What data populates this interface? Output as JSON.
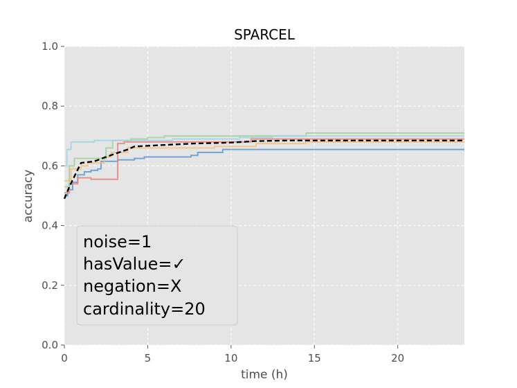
{
  "chart_data": {
    "type": "line",
    "title": "SPARCEL",
    "xlabel": "time (h)",
    "ylabel": "accuracy",
    "xlim": [
      0,
      24
    ],
    "ylim": [
      0.0,
      1.0
    ],
    "x_ticks": [
      0,
      5,
      10,
      15,
      20
    ],
    "x_tick_labels": [
      "0",
      "5",
      "10",
      "15",
      "20"
    ],
    "y_ticks": [
      0.0,
      0.2,
      0.4,
      0.6,
      0.8,
      1.0
    ],
    "y_tick_labels": [
      "0.0",
      "0.2",
      "0.4",
      "0.6",
      "0.8",
      "1.0"
    ],
    "grid": true,
    "annotation": {
      "lines": [
        "noise=1",
        "hasValue=✓",
        "negation=X",
        "cardinality=20"
      ],
      "placement": "lower-left"
    },
    "series": [
      {
        "style": "step",
        "color": "#5b9bd5",
        "points": [
          [
            0,
            0.5
          ],
          [
            0.2,
            0.52
          ],
          [
            0.5,
            0.545
          ],
          [
            0.8,
            0.57
          ],
          [
            1.2,
            0.58
          ],
          [
            1.6,
            0.585
          ],
          [
            2.0,
            0.59
          ],
          [
            2.2,
            0.615
          ],
          [
            3.2,
            0.62
          ],
          [
            4.2,
            0.625
          ],
          [
            4.8,
            0.63
          ],
          [
            7.6,
            0.635
          ],
          [
            8.0,
            0.645
          ],
          [
            9.5,
            0.655
          ],
          [
            24,
            0.655
          ]
        ]
      },
      {
        "style": "step",
        "color": "#e8847a",
        "points": [
          [
            0,
            0.51
          ],
          [
            0.3,
            0.54
          ],
          [
            0.8,
            0.56
          ],
          [
            1.6,
            0.555
          ],
          [
            3.2,
            0.675
          ],
          [
            3.6,
            0.68
          ],
          [
            9.0,
            0.68
          ],
          [
            11.2,
            0.69
          ],
          [
            24,
            0.69
          ]
        ]
      },
      {
        "style": "step",
        "color": "#f0c27b",
        "points": [
          [
            0,
            0.55
          ],
          [
            0.4,
            0.59
          ],
          [
            1.0,
            0.6
          ],
          [
            1.4,
            0.61
          ],
          [
            2.4,
            0.63
          ],
          [
            2.8,
            0.645
          ],
          [
            3.8,
            0.66
          ],
          [
            9.0,
            0.665
          ],
          [
            11.5,
            0.675
          ],
          [
            14.5,
            0.68
          ],
          [
            24,
            0.68
          ]
        ]
      },
      {
        "style": "step",
        "color": "#9fd19a",
        "points": [
          [
            0,
            0.53
          ],
          [
            0.3,
            0.6
          ],
          [
            0.6,
            0.625
          ],
          [
            2.0,
            0.625
          ],
          [
            2.5,
            0.66
          ],
          [
            2.9,
            0.685
          ],
          [
            4.0,
            0.69
          ],
          [
            5.0,
            0.695
          ],
          [
            6.0,
            0.7
          ],
          [
            14.5,
            0.71
          ],
          [
            24,
            0.71
          ]
        ]
      },
      {
        "style": "step",
        "color": "#9fd5e8",
        "points": [
          [
            0,
            0.6
          ],
          [
            0.15,
            0.655
          ],
          [
            0.4,
            0.68
          ],
          [
            1.8,
            0.685
          ],
          [
            4.3,
            0.685
          ],
          [
            6.5,
            0.69
          ],
          [
            10.5,
            0.695
          ],
          [
            12.5,
            0.7
          ],
          [
            24,
            0.7
          ]
        ]
      },
      {
        "style": "dashed",
        "color": "#000000",
        "points": [
          [
            0,
            0.49
          ],
          [
            0.3,
            0.53
          ],
          [
            0.6,
            0.565
          ],
          [
            1.0,
            0.61
          ],
          [
            1.8,
            0.615
          ],
          [
            2.5,
            0.63
          ],
          [
            3.0,
            0.64
          ],
          [
            3.8,
            0.655
          ],
          [
            4.2,
            0.665
          ],
          [
            6.0,
            0.67
          ],
          [
            7.8,
            0.675
          ],
          [
            10.0,
            0.678
          ],
          [
            11.5,
            0.683
          ],
          [
            13.5,
            0.685
          ],
          [
            24,
            0.685
          ]
        ]
      }
    ]
  }
}
